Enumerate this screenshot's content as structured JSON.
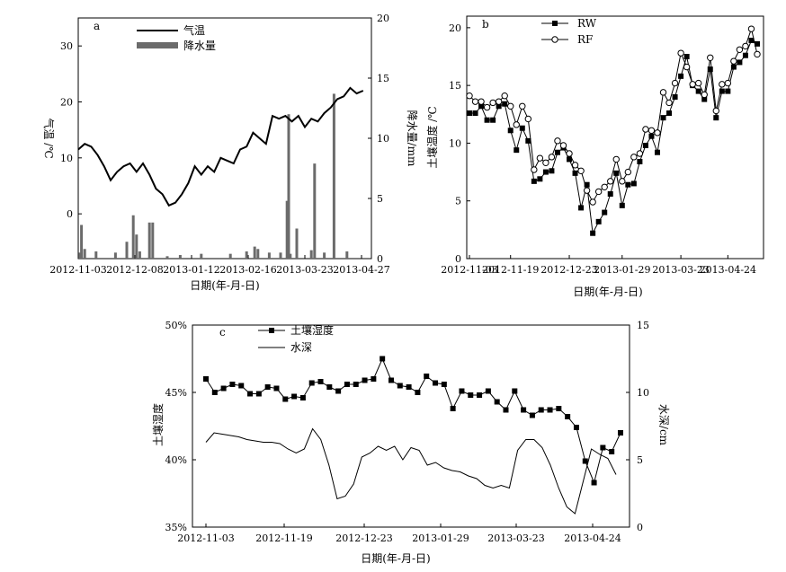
{
  "chart_data": [
    {
      "panel": "a",
      "type": "line",
      "xlabel": "日期(年-月-日)",
      "ylabel": "气温 /℃",
      "ylabel_right": "降水量/mm",
      "x_ticks": [
        "2012-11-03",
        "2012-12-08",
        "2013-01-12",
        "2013-02-16",
        "2013-03-23",
        "2013-04-27"
      ],
      "ylim": [
        -8,
        35
      ],
      "y_ticks": [
        "0",
        "10",
        "20",
        "30"
      ],
      "y2lim": [
        0,
        20
      ],
      "y2_ticks": [
        "0",
        "5",
        "10",
        "15",
        "20"
      ],
      "legend": [
        "气温",
        "降水量"
      ],
      "legend_position": "top-left",
      "series": [
        {
          "name": "气温",
          "type": "line",
          "x": [
            "2012-11-03",
            "2012-11-07",
            "2012-11-11",
            "2012-11-15",
            "2012-11-19",
            "2012-11-23",
            "2012-11-27",
            "2012-12-01",
            "2012-12-05",
            "2012-12-09",
            "2012-12-13",
            "2012-12-17",
            "2012-12-21",
            "2012-12-25",
            "2012-12-29",
            "2013-01-02",
            "2013-01-06",
            "2013-01-10",
            "2013-01-14",
            "2013-01-18",
            "2013-01-22",
            "2013-01-26",
            "2013-01-30",
            "2013-02-03",
            "2013-02-07",
            "2013-02-11",
            "2013-02-15",
            "2013-02-19",
            "2013-02-23",
            "2013-02-27",
            "2013-03-03",
            "2013-03-07",
            "2013-03-11",
            "2013-03-15",
            "2013-03-19",
            "2013-03-23",
            "2013-03-27",
            "2013-03-31",
            "2013-04-04",
            "2013-04-08",
            "2013-04-12",
            "2013-04-16",
            "2013-04-20",
            "2013-04-24",
            "2013-04-28"
          ],
          "values": [
            11.5,
            12.5,
            12,
            10.5,
            8.5,
            6,
            7.5,
            8.5,
            9,
            7.5,
            9,
            7,
            4.5,
            3.5,
            1.5,
            2,
            3.5,
            5.5,
            8.5,
            7,
            8.5,
            7.5,
            10,
            9.5,
            9,
            11.5,
            12,
            14.5,
            13.5,
            12.5,
            17.5,
            17,
            17.5,
            16.5,
            17.5,
            15.5,
            17,
            16.5,
            18,
            19,
            20.5,
            21,
            22.5,
            21.5,
            22
          ]
        },
        {
          "name": "降水量",
          "type": "bar",
          "axis": "right",
          "x": [
            "2012-11-04",
            "2012-11-05",
            "2012-11-07",
            "2012-11-14",
            "2012-11-26",
            "2012-12-03",
            "2012-12-07",
            "2012-12-09",
            "2012-12-11",
            "2012-12-17",
            "2012-12-19",
            "2012-12-28",
            "2013-01-05",
            "2013-01-18",
            "2013-02-05",
            "2013-02-15",
            "2013-02-20",
            "2013-02-22",
            "2013-03-01",
            "2013-03-08",
            "2013-03-12",
            "2013-03-13",
            "2013-03-14",
            "2013-03-18",
            "2013-03-27",
            "2013-03-29",
            "2013-04-04",
            "2013-04-10",
            "2013-04-18"
          ],
          "values": [
            0.5,
            2.8,
            0.8,
            0.6,
            0.5,
            1.4,
            3.6,
            2,
            0.6,
            3,
            3,
            0.2,
            0.3,
            0.4,
            0.4,
            0.6,
            1,
            0.8,
            0.5,
            0.5,
            4.8,
            12,
            0.4,
            2.5,
            0.7,
            7.9,
            0.5,
            13.7,
            0.6
          ]
        }
      ]
    },
    {
      "panel": "b",
      "type": "line",
      "xlabel": "日期(年-月-日)",
      "ylabel": "土壤温度 /℃",
      "x_ticks": [
        "2012-11-03",
        "2012-11-19",
        "2012-12-23",
        "2013-01-29",
        "2013-03-23",
        "2013-04-24"
      ],
      "ylim": [
        0,
        21
      ],
      "y_ticks": [
        "0",
        "5",
        "10",
        "15",
        "20"
      ],
      "legend": [
        "RW",
        "RF"
      ],
      "legend_position": "top-left",
      "series": [
        {
          "name": "RW",
          "marker": "filled-square",
          "values": [
            12.6,
            12.6,
            13.2,
            12,
            12,
            13.2,
            13.4,
            11.1,
            9.4,
            11.3,
            10.2,
            6.7,
            6.9,
            7.5,
            7.6,
            9.2,
            9.6,
            8.6,
            7.4,
            4.4,
            6.4,
            2.2,
            3.2,
            4,
            5.6,
            7.4,
            4.6,
            6.4,
            6.5,
            8.4,
            9.8,
            10.6,
            9.2,
            12.2,
            12.6,
            14,
            15.8,
            17.5,
            15,
            14.5,
            13.8,
            16.4,
            12.2,
            14.5,
            14.5,
            16.6,
            17,
            17.6,
            18.9,
            18.6
          ]
        },
        {
          "name": "RF",
          "marker": "open-circle",
          "values": [
            14.1,
            13.6,
            13.6,
            13.1,
            13.5,
            13.6,
            14.1,
            13.2,
            11.6,
            13.2,
            12.1,
            7.7,
            8.7,
            8.3,
            8.8,
            10.2,
            9.8,
            9.1,
            8.1,
            7.6,
            5.9,
            4.9,
            5.8,
            6.2,
            6.7,
            8.6,
            6.7,
            7.5,
            8.8,
            9.1,
            11.2,
            11.1,
            10.9,
            14.4,
            13.5,
            15.2,
            17.8,
            16.6,
            15.1,
            15.2,
            14.2,
            17.4,
            12.8,
            15.1,
            15.2,
            17.1,
            18.1,
            18.4,
            19.9,
            17.7
          ]
        }
      ]
    },
    {
      "panel": "c",
      "type": "line",
      "xlabel": "日期(年-月-日)",
      "ylabel": "土壤湿度",
      "ylabel_right": "水深/cm",
      "x_ticks": [
        "2012-11-03",
        "2012-11-19",
        "2012-12-23",
        "2013-01-29",
        "2013-03-23",
        "2013-04-24"
      ],
      "ylim": [
        35,
        50
      ],
      "y_ticks": [
        "35%",
        "40%",
        "45%",
        "50%"
      ],
      "y2lim": [
        0,
        15
      ],
      "y2_ticks": [
        "0",
        "5",
        "10",
        "15"
      ],
      "legend": [
        "土壤湿度",
        "水深"
      ],
      "legend_position": "top-left",
      "series": [
        {
          "name": "土壤湿度",
          "marker": "filled-square",
          "values": [
            46,
            45,
            45.3,
            45.6,
            45.5,
            44.9,
            44.9,
            45.4,
            45.3,
            44.5,
            44.7,
            44.6,
            45.7,
            45.8,
            45.4,
            45.1,
            45.6,
            45.6,
            45.9,
            46,
            47.5,
            45.9,
            45.5,
            45.4,
            45,
            46.2,
            45.7,
            45.6,
            43.8,
            45.1,
            44.8,
            44.8,
            45.1,
            44.3,
            43.7,
            45.1,
            43.7,
            43.3,
            43.7,
            43.7,
            43.8,
            43.2,
            42.4,
            39.9,
            38.3,
            40.9,
            40.6,
            42
          ]
        },
        {
          "name": "水深",
          "marker": "none",
          "values": [
            6.3,
            7,
            6.9,
            6.8,
            6.7,
            6.5,
            6.4,
            6.3,
            6.3,
            6.2,
            5.8,
            5.5,
            5.8,
            7.3,
            6.5,
            4.6,
            2.1,
            2.3,
            3.2,
            5.2,
            5.5,
            6,
            5.7,
            6,
            5,
            5.9,
            5.7,
            4.6,
            4.8,
            4.4,
            4.2,
            4.1,
            3.8,
            3.6,
            3.1,
            2.9,
            3.1,
            2.9,
            5.7,
            6.5,
            6.5,
            5.9,
            4.6,
            2.9,
            1.5,
            1,
            3.4,
            5.8,
            5.4,
            5.1,
            3.9
          ]
        }
      ]
    }
  ],
  "labels": {
    "a": {
      "tag": "a"
    },
    "b": {
      "tag": "b"
    },
    "c": {
      "tag": "c"
    }
  }
}
